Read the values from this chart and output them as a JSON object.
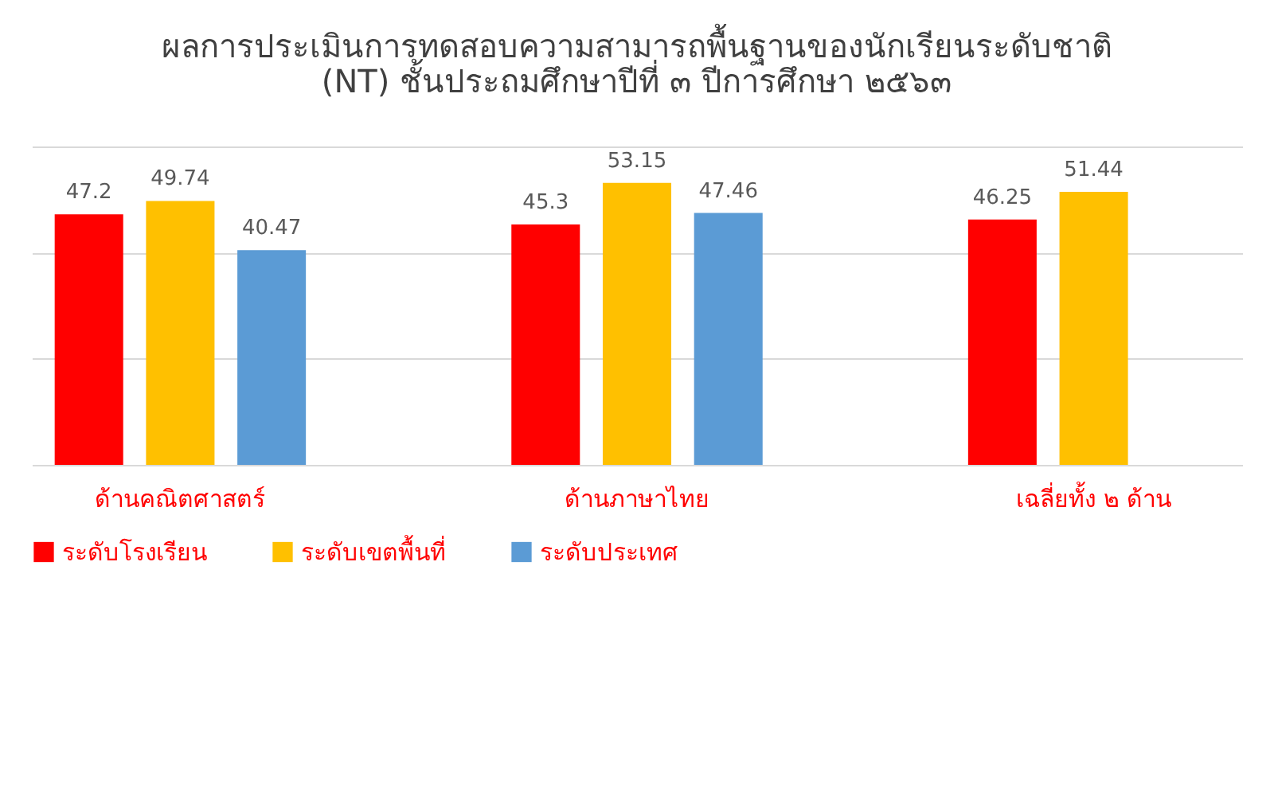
{
  "chart_data": {
    "type": "bar",
    "title": "ผลการประเมินการทดสอบความสามารถพื้นฐานของนักเรียนระดับชาติ\n(NT) ชั้นประถมศึกษาปีที่ ๓ ปีการศึกษา ๒๕๖๓",
    "categories": [
      "ด้านคณิตศาสตร์",
      "ด้านภาษาไทย",
      "เฉลี่ยทั้ง ๒ ด้าน"
    ],
    "series": [
      {
        "name": "ระดับโรงเรียน",
        "color": "#ff0000",
        "values": [
          47.2,
          45.3,
          46.25
        ]
      },
      {
        "name": "ระดับเขตพื้นที่",
        "color": "#ffc000",
        "values": [
          49.74,
          53.15,
          51.44
        ]
      },
      {
        "name": "ระดับประเทศ",
        "color": "#5b9bd5",
        "values": [
          40.47,
          47.46,
          null
        ]
      }
    ],
    "ylim": [
      0,
      60
    ],
    "yticks": [
      {
        "value": 0,
        "label": null
      },
      {
        "value": 20,
        "label": null
      },
      {
        "value": 40,
        "label": null
      },
      {
        "value": 60,
        "label": null
      }
    ],
    "grid": "y",
    "legend": "bottom",
    "data_labels": true
  }
}
